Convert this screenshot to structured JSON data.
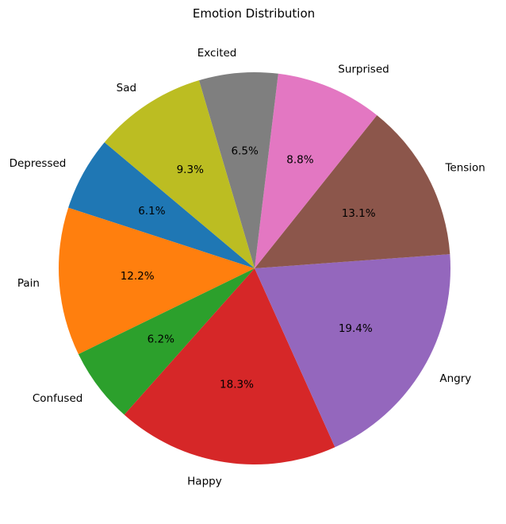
{
  "chart_data": {
    "type": "pie",
    "title": "Emotion Distribution",
    "categories": [
      "Depressed",
      "Pain",
      "Confused",
      "Happy",
      "Angry",
      "Tension",
      "Surprised",
      "Excited",
      "Sad"
    ],
    "values": [
      6.1,
      12.2,
      6.2,
      18.3,
      19.4,
      13.1,
      8.8,
      6.5,
      9.3
    ],
    "value_labels": [
      "6.1%",
      "12.2%",
      "6.2%",
      "18.3%",
      "19.4%",
      "13.1%",
      "8.8%",
      "6.5%",
      "9.3%"
    ],
    "colors": [
      "#1f77b4",
      "#ff7f0e",
      "#2ca02c",
      "#d62728",
      "#9467bd",
      "#8c564b",
      "#e377c2",
      "#7f7f7f",
      "#bcbd22"
    ],
    "start_angle_deg": 140,
    "direction": "counterclockwise",
    "legend": "none"
  }
}
